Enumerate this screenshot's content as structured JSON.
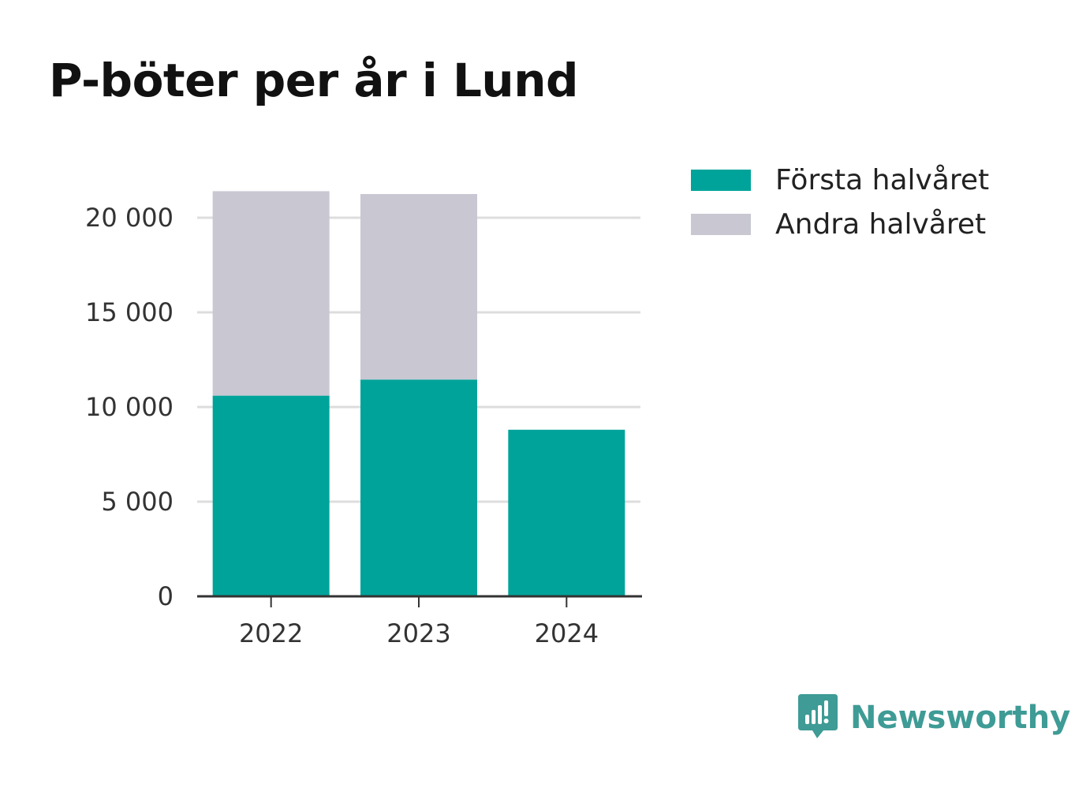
{
  "colors": {
    "first_half": "#00a39a",
    "second_half": "#c8c7d2",
    "grid": "#dddddd",
    "axis": "#333333",
    "brand": "#3e9b95"
  },
  "legend": {
    "items": [
      {
        "label": "Första halvåret",
        "color": "#00a39a"
      },
      {
        "label": "Andra halvåret",
        "color": "#c8c7d2"
      }
    ]
  },
  "brand": {
    "name": "Newsworthy",
    "icon": "newsworthy-logo-icon"
  },
  "chart_data": {
    "type": "bar",
    "stacked": true,
    "title": "P-böter per år i Lund",
    "xlabel": "",
    "ylabel": "",
    "categories": [
      "2022",
      "2023",
      "2024"
    ],
    "series": [
      {
        "name": "Första halvåret",
        "values": [
          10600,
          11450,
          8800
        ]
      },
      {
        "name": "Andra halvåret",
        "values": [
          10800,
          9800,
          null
        ]
      }
    ],
    "ylim": [
      0,
      21500
    ],
    "yticks": [
      0,
      5000,
      10000,
      15000,
      20000
    ],
    "ytick_labels": [
      "0",
      "5 000",
      "10 000",
      "15 000",
      "20 000"
    ],
    "grid": true,
    "legend_position": "top-right"
  }
}
